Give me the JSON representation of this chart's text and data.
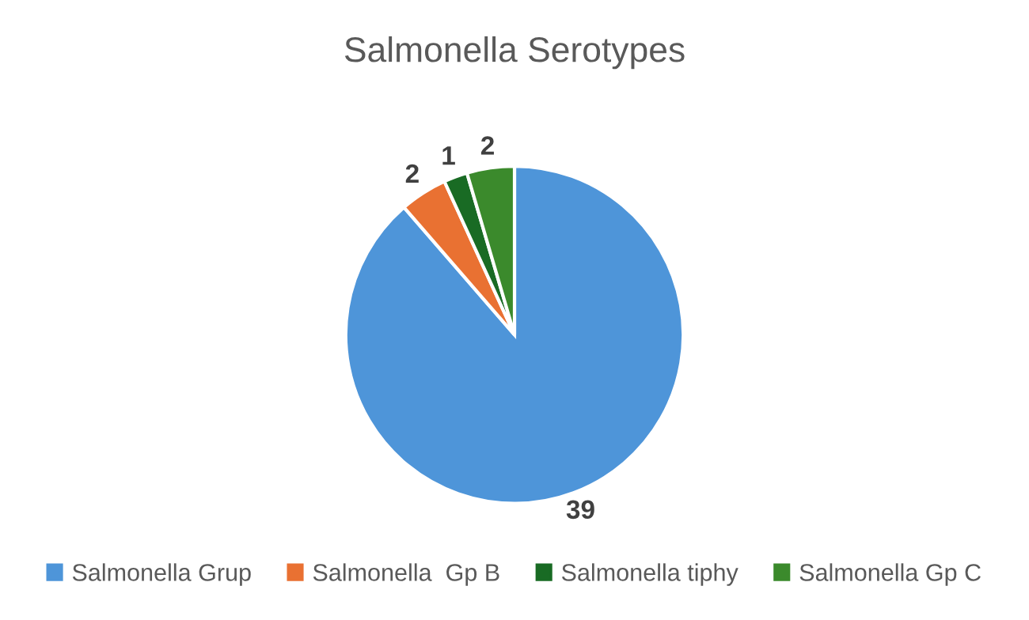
{
  "chart_data": {
    "type": "pie",
    "title": "Salmonella Serotypes",
    "categories": [
      "Salmonella Grup",
      "Salmonella  Gp B",
      "Salmonella tiphy",
      "Salmonella Gp C"
    ],
    "values": [
      39,
      2,
      1,
      2
    ],
    "colors": [
      "#4e95d9",
      "#e97132",
      "#196b24",
      "#3b8a2c"
    ],
    "data_labels": true,
    "legend": "bottom"
  }
}
